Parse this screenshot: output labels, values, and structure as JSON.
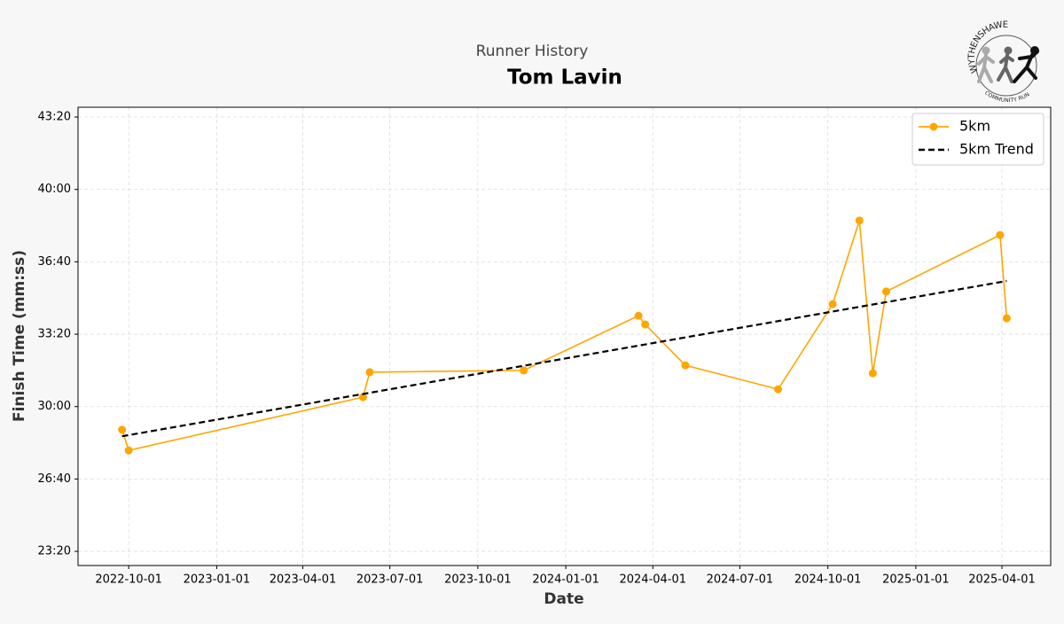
{
  "chart_data": {
    "type": "line",
    "subtitle": "Runner History",
    "title": "Tom Lavin",
    "x_label": "Date",
    "y_label": "Finish Time (mm:ss)",
    "logo": {
      "top": "WYTHENSHAWE",
      "bottom": "COMMUNITY RUN"
    },
    "series": [
      {
        "name": "5km",
        "color": "#ffa500",
        "style": "solid",
        "markers": true,
        "x": [
          "2022-09-24",
          "2022-10-01",
          "2023-06-03",
          "2023-06-10",
          "2023-11-18",
          "2024-03-17",
          "2024-03-24",
          "2024-05-05",
          "2024-08-10",
          "2024-10-06",
          "2024-11-03",
          "2024-11-17",
          "2024-12-01",
          "2025-03-30",
          "2025-04-06"
        ],
        "values": [
          1736,
          1679,
          1826,
          1895,
          1900,
          2051,
          2027,
          1914,
          1848,
          2083,
          2314,
          1892,
          2118,
          2274,
          2044
        ]
      },
      {
        "name": "5km Trend",
        "color": "#000000",
        "style": "dashed",
        "markers": false,
        "x": [
          "2022-09-24",
          "2025-04-06"
        ],
        "values": [
          1718,
          2147
        ]
      }
    ],
    "xlim": [
      "2022-08-09",
      "2025-05-22"
    ],
    "xticks": [
      "2022-10-01",
      "2023-01-01",
      "2023-04-01",
      "2023-07-01",
      "2023-10-01",
      "2024-01-01",
      "2024-04-01",
      "2024-07-01",
      "2024-10-01",
      "2025-01-01",
      "2025-04-01"
    ],
    "ylim": [
      1361,
      2627
    ],
    "yticks": [
      {
        "value": 1400,
        "label": "23:20"
      },
      {
        "value": 1600,
        "label": "26:40"
      },
      {
        "value": 1800,
        "label": "30:00"
      },
      {
        "value": 2000,
        "label": "33:20"
      },
      {
        "value": 2200,
        "label": "36:40"
      },
      {
        "value": 2400,
        "label": "40:00"
      },
      {
        "value": 2600,
        "label": "43:20"
      }
    ],
    "grid": true,
    "legend": "upper right"
  }
}
